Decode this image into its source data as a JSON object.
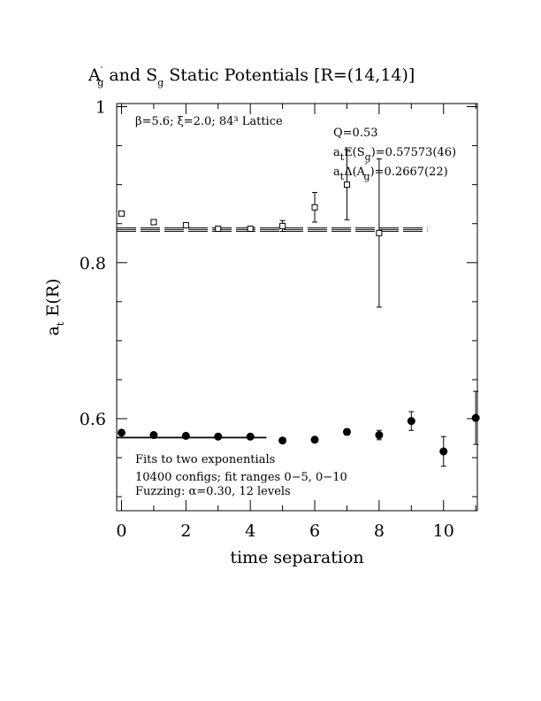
{
  "chart_data": {
    "type": "scatter",
    "title_parts": {
      "a": "A",
      "a_prime": "′",
      "a_sub": "g",
      "and": " and ",
      "s": "S",
      "s_sub": "g",
      "rest": " Static Potentials [R=(14,14)]"
    },
    "xlabel": "time separation",
    "ylabel": "a",
    "ylabel_sub": "t",
    "ylabel_rest": " E(R)",
    "xlim": [
      -0.15,
      11.05
    ],
    "ylim": [
      0.482,
      1.004
    ],
    "x_ticks": [
      {
        "value": 0,
        "label": "0"
      },
      {
        "value": 2,
        "label": "2"
      },
      {
        "value": 4,
        "label": "4"
      },
      {
        "value": 6,
        "label": "6"
      },
      {
        "value": 8,
        "label": "8"
      },
      {
        "value": 10,
        "label": "10"
      }
    ],
    "y_ticks": [
      {
        "value": 0.6,
        "label": "0.6"
      },
      {
        "value": 0.8,
        "label": "0.8"
      },
      {
        "value": 1.0,
        "label": "1"
      }
    ],
    "lattice_info": "β=5.6; ξ=2.0; 84³ Lattice",
    "fit_q": "Q=0.53",
    "fit_sg": {
      "a": "a",
      "t": "t",
      "e": "E(S",
      "g": "g",
      "rest": ")=0.57573(46)"
    },
    "fit_ag": {
      "a": "a",
      "t": "t",
      "e": "Δ(A",
      "prime": "′",
      "g": "g",
      "rest": ")=0.2667(22)"
    },
    "notes": [
      "Fits to two exponentials",
      "10400 configs; fit ranges 0−5, 0−10",
      "Fuzzing: α=0.30, 12 levels"
    ],
    "series": [
      {
        "marker": "open-square",
        "points": [
          {
            "x": 0,
            "y": 0.863,
            "err": 0.003
          },
          {
            "x": 1,
            "y": 0.852,
            "err": 0.002
          },
          {
            "x": 2,
            "y": 0.848,
            "err": 0.002
          },
          {
            "x": 3,
            "y": 0.8435,
            "err": 0.002
          },
          {
            "x": 4,
            "y": 0.8435,
            "err": 0.003
          },
          {
            "x": 5,
            "y": 0.847,
            "err": 0.007
          },
          {
            "x": 6,
            "y": 0.871,
            "err": 0.019
          },
          {
            "x": 7,
            "y": 0.9,
            "err": 0.045
          },
          {
            "x": 8,
            "y": 0.838,
            "err": 0.095
          }
        ],
        "fit": {
          "value": 0.8424,
          "band": 0.0023,
          "x_range": [
            -0.15,
            9.5
          ]
        }
      },
      {
        "marker": "filled-circle",
        "points": [
          {
            "x": 0,
            "y": 0.582,
            "err": 0.001
          },
          {
            "x": 1,
            "y": 0.579,
            "err": 0.001
          },
          {
            "x": 2,
            "y": 0.578,
            "err": 0.001
          },
          {
            "x": 3,
            "y": 0.577,
            "err": 0.001
          },
          {
            "x": 4,
            "y": 0.577,
            "err": 0.002
          },
          {
            "x": 5,
            "y": 0.572,
            "err": 0.002
          },
          {
            "x": 6,
            "y": 0.573,
            "err": 0.003
          },
          {
            "x": 7,
            "y": 0.583,
            "err": 0.004
          },
          {
            "x": 8,
            "y": 0.579,
            "err": 0.006
          },
          {
            "x": 9,
            "y": 0.597,
            "err": 0.012
          },
          {
            "x": 10,
            "y": 0.558,
            "err": 0.019
          },
          {
            "x": 11,
            "y": 0.601,
            "err": 0.034
          }
        ],
        "fit": {
          "value": 0.57573,
          "band": 0.00046,
          "x_range": [
            -0.15,
            4.5
          ]
        }
      }
    ]
  }
}
